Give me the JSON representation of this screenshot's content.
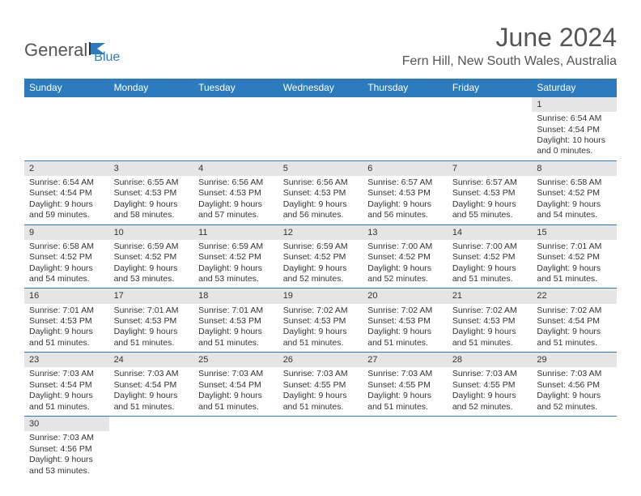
{
  "logo": {
    "part1": "General",
    "part2": "Blue"
  },
  "title": "June 2024",
  "location": "Fern Hill, New South Wales, Australia",
  "colors": {
    "header_bg": "#2b7bbd",
    "header_text": "#ffffff",
    "daynum_bg": "#e5e5e5",
    "border": "#2b7bbd",
    "text": "#333333",
    "title_text": "#555555"
  },
  "weekdays": [
    "Sunday",
    "Monday",
    "Tuesday",
    "Wednesday",
    "Thursday",
    "Friday",
    "Saturday"
  ],
  "weeks": [
    [
      null,
      null,
      null,
      null,
      null,
      null,
      {
        "n": "1",
        "sr": "Sunrise: 6:54 AM",
        "ss": "Sunset: 4:54 PM",
        "d1": "Daylight: 10 hours",
        "d2": "and 0 minutes."
      }
    ],
    [
      {
        "n": "2",
        "sr": "Sunrise: 6:54 AM",
        "ss": "Sunset: 4:54 PM",
        "d1": "Daylight: 9 hours",
        "d2": "and 59 minutes."
      },
      {
        "n": "3",
        "sr": "Sunrise: 6:55 AM",
        "ss": "Sunset: 4:53 PM",
        "d1": "Daylight: 9 hours",
        "d2": "and 58 minutes."
      },
      {
        "n": "4",
        "sr": "Sunrise: 6:56 AM",
        "ss": "Sunset: 4:53 PM",
        "d1": "Daylight: 9 hours",
        "d2": "and 57 minutes."
      },
      {
        "n": "5",
        "sr": "Sunrise: 6:56 AM",
        "ss": "Sunset: 4:53 PM",
        "d1": "Daylight: 9 hours",
        "d2": "and 56 minutes."
      },
      {
        "n": "6",
        "sr": "Sunrise: 6:57 AM",
        "ss": "Sunset: 4:53 PM",
        "d1": "Daylight: 9 hours",
        "d2": "and 56 minutes."
      },
      {
        "n": "7",
        "sr": "Sunrise: 6:57 AM",
        "ss": "Sunset: 4:53 PM",
        "d1": "Daylight: 9 hours",
        "d2": "and 55 minutes."
      },
      {
        "n": "8",
        "sr": "Sunrise: 6:58 AM",
        "ss": "Sunset: 4:52 PM",
        "d1": "Daylight: 9 hours",
        "d2": "and 54 minutes."
      }
    ],
    [
      {
        "n": "9",
        "sr": "Sunrise: 6:58 AM",
        "ss": "Sunset: 4:52 PM",
        "d1": "Daylight: 9 hours",
        "d2": "and 54 minutes."
      },
      {
        "n": "10",
        "sr": "Sunrise: 6:59 AM",
        "ss": "Sunset: 4:52 PM",
        "d1": "Daylight: 9 hours",
        "d2": "and 53 minutes."
      },
      {
        "n": "11",
        "sr": "Sunrise: 6:59 AM",
        "ss": "Sunset: 4:52 PM",
        "d1": "Daylight: 9 hours",
        "d2": "and 53 minutes."
      },
      {
        "n": "12",
        "sr": "Sunrise: 6:59 AM",
        "ss": "Sunset: 4:52 PM",
        "d1": "Daylight: 9 hours",
        "d2": "and 52 minutes."
      },
      {
        "n": "13",
        "sr": "Sunrise: 7:00 AM",
        "ss": "Sunset: 4:52 PM",
        "d1": "Daylight: 9 hours",
        "d2": "and 52 minutes."
      },
      {
        "n": "14",
        "sr": "Sunrise: 7:00 AM",
        "ss": "Sunset: 4:52 PM",
        "d1": "Daylight: 9 hours",
        "d2": "and 51 minutes."
      },
      {
        "n": "15",
        "sr": "Sunrise: 7:01 AM",
        "ss": "Sunset: 4:52 PM",
        "d1": "Daylight: 9 hours",
        "d2": "and 51 minutes."
      }
    ],
    [
      {
        "n": "16",
        "sr": "Sunrise: 7:01 AM",
        "ss": "Sunset: 4:53 PM",
        "d1": "Daylight: 9 hours",
        "d2": "and 51 minutes."
      },
      {
        "n": "17",
        "sr": "Sunrise: 7:01 AM",
        "ss": "Sunset: 4:53 PM",
        "d1": "Daylight: 9 hours",
        "d2": "and 51 minutes."
      },
      {
        "n": "18",
        "sr": "Sunrise: 7:01 AM",
        "ss": "Sunset: 4:53 PM",
        "d1": "Daylight: 9 hours",
        "d2": "and 51 minutes."
      },
      {
        "n": "19",
        "sr": "Sunrise: 7:02 AM",
        "ss": "Sunset: 4:53 PM",
        "d1": "Daylight: 9 hours",
        "d2": "and 51 minutes."
      },
      {
        "n": "20",
        "sr": "Sunrise: 7:02 AM",
        "ss": "Sunset: 4:53 PM",
        "d1": "Daylight: 9 hours",
        "d2": "and 51 minutes."
      },
      {
        "n": "21",
        "sr": "Sunrise: 7:02 AM",
        "ss": "Sunset: 4:53 PM",
        "d1": "Daylight: 9 hours",
        "d2": "and 51 minutes."
      },
      {
        "n": "22",
        "sr": "Sunrise: 7:02 AM",
        "ss": "Sunset: 4:54 PM",
        "d1": "Daylight: 9 hours",
        "d2": "and 51 minutes."
      }
    ],
    [
      {
        "n": "23",
        "sr": "Sunrise: 7:03 AM",
        "ss": "Sunset: 4:54 PM",
        "d1": "Daylight: 9 hours",
        "d2": "and 51 minutes."
      },
      {
        "n": "24",
        "sr": "Sunrise: 7:03 AM",
        "ss": "Sunset: 4:54 PM",
        "d1": "Daylight: 9 hours",
        "d2": "and 51 minutes."
      },
      {
        "n": "25",
        "sr": "Sunrise: 7:03 AM",
        "ss": "Sunset: 4:54 PM",
        "d1": "Daylight: 9 hours",
        "d2": "and 51 minutes."
      },
      {
        "n": "26",
        "sr": "Sunrise: 7:03 AM",
        "ss": "Sunset: 4:55 PM",
        "d1": "Daylight: 9 hours",
        "d2": "and 51 minutes."
      },
      {
        "n": "27",
        "sr": "Sunrise: 7:03 AM",
        "ss": "Sunset: 4:55 PM",
        "d1": "Daylight: 9 hours",
        "d2": "and 51 minutes."
      },
      {
        "n": "28",
        "sr": "Sunrise: 7:03 AM",
        "ss": "Sunset: 4:55 PM",
        "d1": "Daylight: 9 hours",
        "d2": "and 52 minutes."
      },
      {
        "n": "29",
        "sr": "Sunrise: 7:03 AM",
        "ss": "Sunset: 4:56 PM",
        "d1": "Daylight: 9 hours",
        "d2": "and 52 minutes."
      }
    ],
    [
      {
        "n": "30",
        "sr": "Sunrise: 7:03 AM",
        "ss": "Sunset: 4:56 PM",
        "d1": "Daylight: 9 hours",
        "d2": "and 53 minutes."
      },
      null,
      null,
      null,
      null,
      null,
      null
    ]
  ]
}
